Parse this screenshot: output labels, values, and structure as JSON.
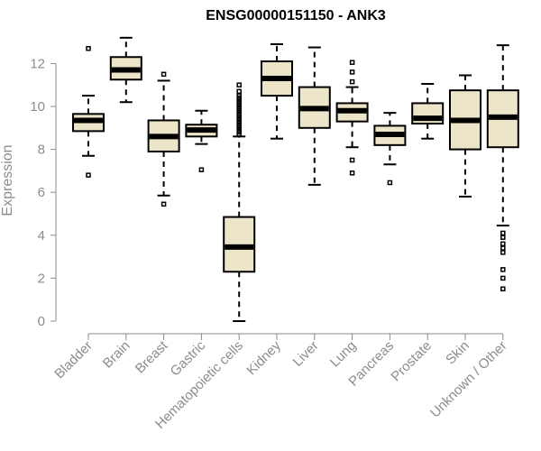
{
  "chart_data": {
    "type": "boxplot",
    "title": "ENSG00000151150 - ANK3",
    "ylabel": "Expression",
    "xlabel": "",
    "ylim": [
      0,
      13.2
    ],
    "yticks": [
      0,
      2,
      4,
      6,
      8,
      10,
      12
    ],
    "categories": [
      "Bladder",
      "Brain",
      "Breast",
      "Gastric",
      "Hematopoietic cells",
      "Kidney",
      "Liver",
      "Lung",
      "Pancreas",
      "Prostate",
      "Skin",
      "Unknown / Other"
    ],
    "boxes": [
      {
        "min": 7.7,
        "q1": 8.85,
        "median": 9.35,
        "q3": 9.65,
        "max": 10.5,
        "outliers": [
          12.7,
          6.8
        ]
      },
      {
        "min": 10.2,
        "q1": 11.25,
        "median": 11.7,
        "q3": 12.3,
        "max": 13.2,
        "outliers": []
      },
      {
        "min": 5.85,
        "q1": 7.9,
        "median": 8.6,
        "q3": 9.35,
        "max": 11.2,
        "outliers": [
          11.5,
          5.45
        ]
      },
      {
        "min": 8.25,
        "q1": 8.6,
        "median": 8.9,
        "q3": 9.15,
        "max": 9.8,
        "outliers": [
          7.05
        ]
      },
      {
        "min": 0.0,
        "q1": 2.3,
        "median": 3.45,
        "q3": 4.85,
        "max": 8.6,
        "outliers": [
          8.7,
          8.8,
          8.9,
          9.0,
          9.1,
          9.2,
          9.3,
          9.4,
          9.5,
          9.6,
          9.7,
          9.8,
          9.9,
          10.0,
          10.1,
          10.2,
          10.3,
          10.4,
          10.5,
          10.7,
          11.0
        ]
      },
      {
        "min": 8.5,
        "q1": 10.5,
        "median": 11.3,
        "q3": 12.1,
        "max": 12.9,
        "outliers": []
      },
      {
        "min": 6.35,
        "q1": 9.0,
        "median": 9.9,
        "q3": 10.9,
        "max": 12.75,
        "outliers": []
      },
      {
        "min": 8.1,
        "q1": 9.3,
        "median": 9.8,
        "q3": 10.15,
        "max": 10.9,
        "outliers": [
          12.05,
          11.6,
          11.15,
          7.5,
          6.9
        ]
      },
      {
        "min": 7.3,
        "q1": 8.2,
        "median": 8.7,
        "q3": 9.1,
        "max": 9.7,
        "outliers": [
          6.45
        ]
      },
      {
        "min": 8.5,
        "q1": 9.2,
        "median": 9.45,
        "q3": 10.15,
        "max": 11.05,
        "outliers": []
      },
      {
        "min": 5.8,
        "q1": 8.0,
        "median": 9.35,
        "q3": 10.75,
        "max": 11.45,
        "outliers": []
      },
      {
        "min": 4.45,
        "q1": 8.1,
        "median": 9.5,
        "q3": 10.75,
        "max": 12.85,
        "outliers": [
          4.1,
          3.9,
          3.6,
          3.4,
          3.2,
          2.4,
          2.0,
          1.5
        ]
      }
    ],
    "colors": {
      "box_fill": "#ede5c9",
      "stroke": "#000000",
      "axis": "#8c8c8c"
    },
    "grid": false,
    "legend": "none"
  }
}
